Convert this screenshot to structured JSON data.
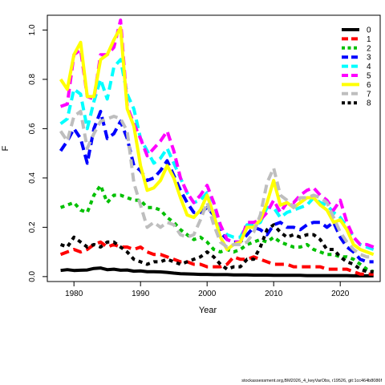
{
  "chart_data": {
    "type": "line",
    "title": "",
    "xlabel": "Year",
    "ylabel": "F",
    "xlim": [
      1976,
      2026
    ],
    "ylim": [
      -0.02,
      1.06
    ],
    "xticks": [
      1980,
      1990,
      2000,
      2010,
      2020
    ],
    "yticks": [
      0.0,
      0.2,
      0.4,
      0.6,
      0.8,
      1.0
    ],
    "ytick_labels": [
      "0.0",
      "0.2",
      "0.4",
      "0.6",
      "0.8",
      "1.0"
    ],
    "grid": false,
    "legend_position": "top-right",
    "x": [
      1978,
      1979,
      1980,
      1981,
      1982,
      1983,
      1984,
      1985,
      1986,
      1987,
      1988,
      1989,
      1990,
      1991,
      1992,
      1993,
      1994,
      1995,
      1996,
      1997,
      1998,
      1999,
      2000,
      2001,
      2002,
      2003,
      2004,
      2005,
      2006,
      2007,
      2008,
      2009,
      2010,
      2011,
      2012,
      2013,
      2014,
      2015,
      2016,
      2017,
      2018,
      2019,
      2020,
      2021,
      2022,
      2023,
      2024,
      2025
    ],
    "series": [
      {
        "name": "0",
        "color": "#000000",
        "dash": "solid",
        "values": [
          0.025,
          0.028,
          0.025,
          0.026,
          0.027,
          0.033,
          0.035,
          0.028,
          0.03,
          0.026,
          0.027,
          0.022,
          0.023,
          0.02,
          0.02,
          0.019,
          0.017,
          0.014,
          0.012,
          0.011,
          0.01,
          0.009,
          0.009,
          0.008,
          0.008,
          0.008,
          0.007,
          0.007,
          0.007,
          0.006,
          0.006,
          0.006,
          0.005,
          0.005,
          0.005,
          0.005,
          0.005,
          0.004,
          0.004,
          0.004,
          0.004,
          0.004,
          0.004,
          0.004,
          0.003,
          0.003,
          0.003,
          0.003
        ]
      },
      {
        "name": "1",
        "color": "#ff0000",
        "dash": "long",
        "values": [
          0.09,
          0.1,
          0.11,
          0.1,
          0.11,
          0.13,
          0.14,
          0.12,
          0.13,
          0.12,
          0.12,
          0.11,
          0.12,
          0.1,
          0.09,
          0.09,
          0.08,
          0.07,
          0.06,
          0.06,
          0.05,
          0.05,
          0.04,
          0.04,
          0.04,
          0.05,
          0.08,
          0.07,
          0.07,
          0.08,
          0.07,
          0.06,
          0.05,
          0.05,
          0.05,
          0.04,
          0.04,
          0.04,
          0.04,
          0.04,
          0.03,
          0.03,
          0.03,
          0.03,
          0.02,
          0.01,
          0.01,
          0.01
        ]
      },
      {
        "name": "2",
        "color": "#00c000",
        "dash": "short",
        "values": [
          0.28,
          0.29,
          0.3,
          0.27,
          0.26,
          0.33,
          0.37,
          0.3,
          0.33,
          0.33,
          0.32,
          0.31,
          0.31,
          0.28,
          0.28,
          0.27,
          0.24,
          0.22,
          0.19,
          0.17,
          0.15,
          0.16,
          0.14,
          0.11,
          0.1,
          0.11,
          0.1,
          0.11,
          0.13,
          0.14,
          0.15,
          0.14,
          0.16,
          0.14,
          0.13,
          0.12,
          0.12,
          0.13,
          0.11,
          0.1,
          0.09,
          0.09,
          0.08,
          0.08,
          0.07,
          0.05,
          0.03,
          0.02
        ]
      },
      {
        "name": "3",
        "color": "#0000ff",
        "dash": "long",
        "values": [
          0.51,
          0.55,
          0.6,
          0.56,
          0.46,
          0.6,
          0.67,
          0.56,
          0.58,
          0.63,
          0.56,
          0.45,
          0.43,
          0.39,
          0.4,
          0.43,
          0.47,
          0.41,
          0.35,
          0.3,
          0.26,
          0.26,
          0.28,
          0.25,
          0.18,
          0.15,
          0.14,
          0.14,
          0.17,
          0.2,
          0.19,
          0.17,
          0.21,
          0.22,
          0.2,
          0.2,
          0.19,
          0.21,
          0.22,
          0.22,
          0.2,
          0.22,
          0.16,
          0.12,
          0.1,
          0.07,
          0.06,
          0.06
        ]
      },
      {
        "name": "4",
        "color": "#00ffff",
        "dash": "long",
        "values": [
          0.62,
          0.64,
          0.76,
          0.74,
          0.6,
          0.71,
          0.8,
          0.72,
          0.85,
          0.88,
          0.74,
          0.68,
          0.56,
          0.51,
          0.46,
          0.48,
          0.52,
          0.46,
          0.4,
          0.34,
          0.3,
          0.31,
          0.34,
          0.3,
          0.2,
          0.17,
          0.16,
          0.16,
          0.21,
          0.21,
          0.22,
          0.28,
          0.28,
          0.24,
          0.26,
          0.27,
          0.28,
          0.29,
          0.32,
          0.3,
          0.29,
          0.26,
          0.24,
          0.2,
          0.16,
          0.13,
          0.12,
          0.11
        ]
      },
      {
        "name": "5",
        "color": "#ff00ff",
        "dash": "long",
        "values": [
          0.69,
          0.7,
          0.9,
          0.92,
          0.73,
          0.72,
          0.9,
          0.9,
          0.93,
          1.04,
          0.69,
          0.62,
          0.56,
          0.49,
          0.52,
          0.55,
          0.59,
          0.51,
          0.4,
          0.34,
          0.3,
          0.33,
          0.37,
          0.3,
          0.21,
          0.15,
          0.14,
          0.14,
          0.22,
          0.22,
          0.23,
          0.26,
          0.31,
          0.26,
          0.3,
          0.3,
          0.33,
          0.35,
          0.36,
          0.33,
          0.31,
          0.27,
          0.31,
          0.22,
          0.16,
          0.13,
          0.13,
          0.12
        ]
      },
      {
        "name": "6",
        "color": "#ffff00",
        "dash": "solid",
        "values": [
          0.8,
          0.76,
          0.9,
          0.95,
          0.73,
          0.73,
          0.88,
          0.9,
          0.96,
          1.01,
          0.68,
          0.61,
          0.45,
          0.35,
          0.36,
          0.39,
          0.45,
          0.4,
          0.32,
          0.25,
          0.24,
          0.27,
          0.33,
          0.25,
          0.16,
          0.11,
          0.13,
          0.14,
          0.2,
          0.2,
          0.23,
          0.3,
          0.39,
          0.29,
          0.3,
          0.28,
          0.3,
          0.32,
          0.32,
          0.29,
          0.27,
          0.22,
          0.23,
          0.19,
          0.13,
          0.11,
          0.1,
          0.09
        ]
      },
      {
        "name": "7",
        "color": "#bebebe",
        "dash": "long",
        "values": [
          0.59,
          0.55,
          0.65,
          0.67,
          0.52,
          0.58,
          0.63,
          0.64,
          0.65,
          0.64,
          0.59,
          0.38,
          0.29,
          0.2,
          0.22,
          0.2,
          0.22,
          0.21,
          0.17,
          0.16,
          0.17,
          0.23,
          0.3,
          0.21,
          0.14,
          0.12,
          0.13,
          0.13,
          0.14,
          0.18,
          0.25,
          0.38,
          0.44,
          0.33,
          0.31,
          0.28,
          0.32,
          0.32,
          0.33,
          0.32,
          0.3,
          0.24,
          0.18,
          0.14,
          0.11,
          0.09,
          0.08,
          0.08
        ]
      },
      {
        "name": "8",
        "color": "#000000",
        "dash": "short",
        "values": [
          0.13,
          0.12,
          0.16,
          0.14,
          0.12,
          0.13,
          0.12,
          0.14,
          0.14,
          0.12,
          0.1,
          0.07,
          0.06,
          0.05,
          0.06,
          0.06,
          0.07,
          0.06,
          0.05,
          0.06,
          0.07,
          0.08,
          0.1,
          0.08,
          0.05,
          0.03,
          0.04,
          0.04,
          0.07,
          0.07,
          0.12,
          0.19,
          0.21,
          0.18,
          0.16,
          0.17,
          0.16,
          0.17,
          0.17,
          0.15,
          0.11,
          0.11,
          0.08,
          0.06,
          0.05,
          0.03,
          0.02,
          0.02
        ]
      }
    ]
  },
  "footnote": "stockassessment.org,BM2026_4_keyVarObs, r19526, git:1cc464b8086f"
}
